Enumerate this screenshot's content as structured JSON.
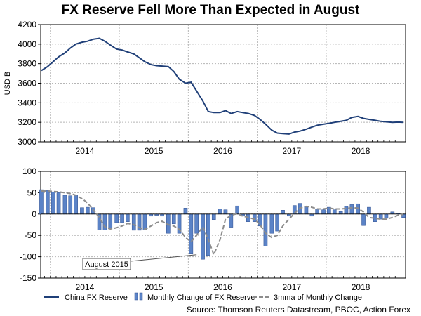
{
  "title": "FX Reserve Fell More Than Expected in August",
  "colors": {
    "line": "#1f3f78",
    "bar": "#5b83c7",
    "bar_edge": "#2f4f8f",
    "mma": "#8c8c8c",
    "grid": "#b5b5b5"
  },
  "chart_data": [
    {
      "type": "line",
      "ylabel": "USD B",
      "ylim": [
        3000,
        4200
      ],
      "yticks": [
        3000,
        3200,
        3400,
        3600,
        3800,
        4000,
        4200
      ],
      "xlim": [
        2013.36,
        2018.65
      ],
      "year_ticks": [
        2014,
        2015,
        2016,
        2017,
        2018
      ],
      "grid": true,
      "series": [
        {
          "name": "China FX Reserve",
          "x": [
            2013.37,
            2013.46,
            2013.54,
            2013.62,
            2013.71,
            2013.79,
            2013.87,
            2013.96,
            2014.04,
            2014.12,
            2014.21,
            2014.29,
            2014.37,
            2014.46,
            2014.54,
            2014.62,
            2014.71,
            2014.79,
            2014.87,
            2014.96,
            2015.04,
            2015.12,
            2015.21,
            2015.29,
            2015.37,
            2015.46,
            2015.54,
            2015.62,
            2015.71,
            2015.79,
            2015.87,
            2015.96,
            2016.04,
            2016.12,
            2016.21,
            2016.29,
            2016.37,
            2016.46,
            2016.54,
            2016.62,
            2016.71,
            2016.79,
            2016.87,
            2016.96,
            2017.04,
            2017.12,
            2017.21,
            2017.29,
            2017.37,
            2017.46,
            2017.54,
            2017.62,
            2017.71,
            2017.79,
            2017.87,
            2017.96,
            2018.04,
            2018.12,
            2018.21,
            2018.29,
            2018.37,
            2018.46,
            2018.54,
            2018.62
          ],
          "values": [
            3730,
            3770,
            3820,
            3870,
            3910,
            3960,
            4000,
            4020,
            4030,
            4050,
            4060,
            4030,
            3990,
            3950,
            3940,
            3920,
            3900,
            3860,
            3820,
            3790,
            3780,
            3775,
            3770,
            3720,
            3640,
            3600,
            3610,
            3520,
            3420,
            3310,
            3300,
            3300,
            3320,
            3290,
            3310,
            3300,
            3290,
            3270,
            3230,
            3180,
            3120,
            3090,
            3085,
            3080,
            3100,
            3110,
            3130,
            3150,
            3170,
            3180,
            3190,
            3200,
            3210,
            3220,
            3250,
            3260,
            3240,
            3230,
            3220,
            3210,
            3205,
            3200,
            3202,
            3200
          ]
        }
      ]
    },
    {
      "type": "bar",
      "ylim": [
        -150,
        100
      ],
      "yticks": [
        -150,
        -100,
        -50,
        0,
        50,
        100
      ],
      "xlim": [
        2013.36,
        2018.65
      ],
      "year_ticks": [
        2014,
        2015,
        2016,
        2017,
        2018
      ],
      "grid": true,
      "series": [
        {
          "name": "Monthly Change of FX Reserve",
          "x": [
            2013.37,
            2013.46,
            2013.54,
            2013.62,
            2013.71,
            2013.79,
            2013.87,
            2013.96,
            2014.04,
            2014.12,
            2014.21,
            2014.29,
            2014.37,
            2014.46,
            2014.54,
            2014.62,
            2014.71,
            2014.79,
            2014.87,
            2014.96,
            2015.04,
            2015.12,
            2015.21,
            2015.29,
            2015.37,
            2015.46,
            2015.54,
            2015.62,
            2015.71,
            2015.79,
            2015.87,
            2015.96,
            2016.04,
            2016.12,
            2016.21,
            2016.29,
            2016.37,
            2016.46,
            2016.54,
            2016.62,
            2016.71,
            2016.79,
            2016.87,
            2016.96,
            2017.04,
            2017.12,
            2017.21,
            2017.29,
            2017.37,
            2017.46,
            2017.54,
            2017.62,
            2017.71,
            2017.79,
            2017.87,
            2017.96,
            2018.04,
            2018.12,
            2018.21,
            2018.29,
            2018.37,
            2018.46,
            2018.54,
            2018.62
          ],
          "values": [
            57,
            55,
            52,
            50,
            44,
            43,
            45,
            15,
            16,
            15,
            -37,
            -37,
            -35,
            -20,
            -20,
            -18,
            -38,
            -38,
            -37,
            -5,
            -3,
            -5,
            -45,
            -23,
            -45,
            14,
            -92,
            -45,
            -106,
            -97,
            -13,
            12,
            10,
            -31,
            19,
            -5,
            -18,
            -18,
            -28,
            -75,
            -45,
            -40,
            9,
            -5,
            20,
            25,
            18,
            -5,
            12,
            10,
            16,
            10,
            6,
            18,
            22,
            24,
            -27,
            16,
            -18,
            -12,
            -10,
            5,
            2,
            -8
          ]
        },
        {
          "name": "3mma of Monthly Change",
          "type": "line",
          "style": "dashed",
          "x": [
            2013.37,
            2013.46,
            2013.54,
            2013.62,
            2013.71,
            2013.79,
            2013.87,
            2013.96,
            2014.04,
            2014.12,
            2014.21,
            2014.29,
            2014.37,
            2014.46,
            2014.54,
            2014.62,
            2014.71,
            2014.79,
            2014.87,
            2014.96,
            2015.04,
            2015.12,
            2015.21,
            2015.29,
            2015.37,
            2015.46,
            2015.54,
            2015.62,
            2015.71,
            2015.79,
            2015.87,
            2015.96,
            2016.04,
            2016.12,
            2016.21,
            2016.29,
            2016.37,
            2016.46,
            2016.54,
            2016.62,
            2016.71,
            2016.79,
            2016.87,
            2016.96,
            2017.04,
            2017.12,
            2017.21,
            2017.29,
            2017.37,
            2017.46,
            2017.54,
            2017.62,
            2017.71,
            2017.79,
            2017.87,
            2017.96,
            2018.04,
            2018.12,
            2018.21,
            2018.29,
            2018.37,
            2018.46,
            2018.54,
            2018.62
          ],
          "values": [
            54,
            54,
            53,
            52,
            50,
            48,
            44,
            36,
            26,
            10,
            -8,
            -30,
            -35,
            -32,
            -28,
            -22,
            -25,
            -32,
            -36,
            -28,
            -20,
            -17,
            -25,
            -28,
            -36,
            -55,
            -65,
            -50,
            -30,
            -60,
            -95,
            -60,
            -12,
            -3,
            1,
            -5,
            -8,
            -12,
            -25,
            -45,
            -55,
            -50,
            -28,
            -12,
            2,
            14,
            18,
            16,
            12,
            12,
            14,
            12,
            12,
            13,
            15,
            14,
            5,
            -8,
            -10,
            -12,
            -12,
            -8,
            -3,
            -1
          ]
        }
      ],
      "annotation": {
        "text": "August 2015",
        "x": 2015.62,
        "y": -92
      }
    }
  ],
  "legend": {
    "items": [
      {
        "name": "China FX Reserve",
        "kind": "line"
      },
      {
        "name": "Monthly Change of FX Reserve",
        "kind": "bar"
      },
      {
        "name": "3mma of Monthly Change",
        "kind": "dashed"
      }
    ]
  },
  "source": "Source: Thomson Reuters Datastream, PBOC, Action Forex"
}
